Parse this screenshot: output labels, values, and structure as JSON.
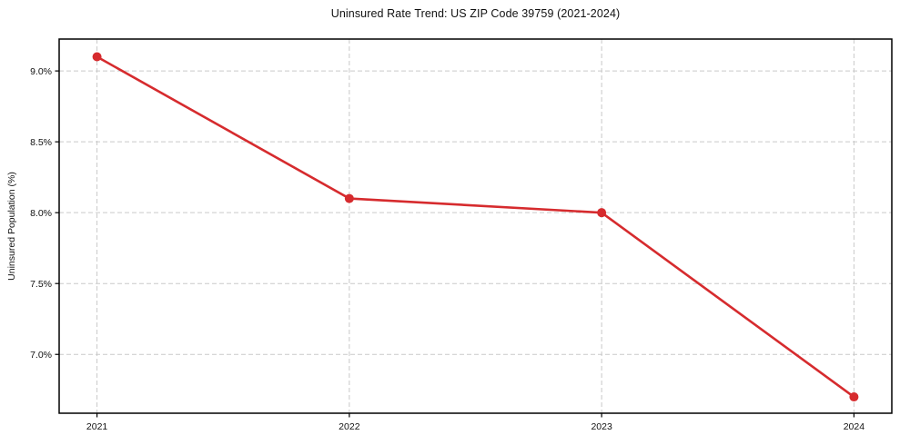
{
  "chart_data": {
    "type": "line",
    "title": "Uninsured Rate Trend: US ZIP Code 39759 (2021-2024)",
    "xlabel": "",
    "ylabel": "Uninsured Population (%)",
    "x": [
      2021,
      2022,
      2023,
      2024
    ],
    "values": [
      9.1,
      8.1,
      8.0,
      6.7
    ],
    "xticks": [
      {
        "value": 2021,
        "label": "2021"
      },
      {
        "value": 2022,
        "label": "2022"
      },
      {
        "value": 2023,
        "label": "2023"
      },
      {
        "value": 2024,
        "label": "2024"
      }
    ],
    "yticks": [
      {
        "value": 7.0,
        "label": "7.0%"
      },
      {
        "value": 7.5,
        "label": "7.5%"
      },
      {
        "value": 8.0,
        "label": "8.0%"
      },
      {
        "value": 8.5,
        "label": "8.5%"
      },
      {
        "value": 9.0,
        "label": "9.0%"
      }
    ],
    "xlim": [
      2020.85,
      2024.15
    ],
    "ylim": [
      6.585,
      9.225
    ],
    "grid": true,
    "grid_style": "dashed",
    "legend_position": "none",
    "colors": {
      "line": "#d62b2e",
      "marker": "#d62b2e",
      "grid": "#c9c9c9",
      "spine": "#000000",
      "text": "#111111"
    }
  }
}
